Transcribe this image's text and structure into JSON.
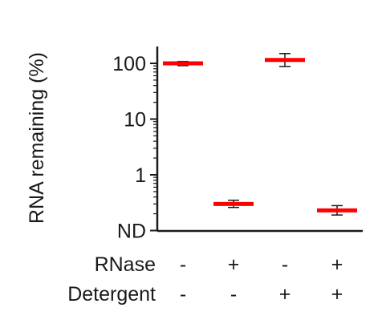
{
  "chart_data": {
    "type": "scatter",
    "ylabel": "RNA remaining (%)",
    "yscale": "log",
    "ylim": [
      0.1,
      200
    ],
    "yticks": [
      {
        "value": 0.1,
        "label": "ND"
      },
      {
        "value": 1,
        "label": "1"
      },
      {
        "value": 10,
        "label": "10"
      },
      {
        "value": 100,
        "label": "100"
      }
    ],
    "conditions": [
      {
        "name": "RNase",
        "values": [
          "-",
          "+",
          "-",
          "+"
        ]
      },
      {
        "name": "Detergent",
        "values": [
          "-",
          "-",
          "+",
          "+"
        ]
      }
    ],
    "series": [
      {
        "marker": "red horizontal bar (mean)",
        "color": "#ff0000",
        "values": [
          100,
          0.3,
          115,
          0.23
        ],
        "error_low": [
          91,
          0.26,
          88,
          0.19
        ],
        "error_high": [
          108,
          0.35,
          150,
          0.28
        ]
      }
    ],
    "grid": false
  }
}
